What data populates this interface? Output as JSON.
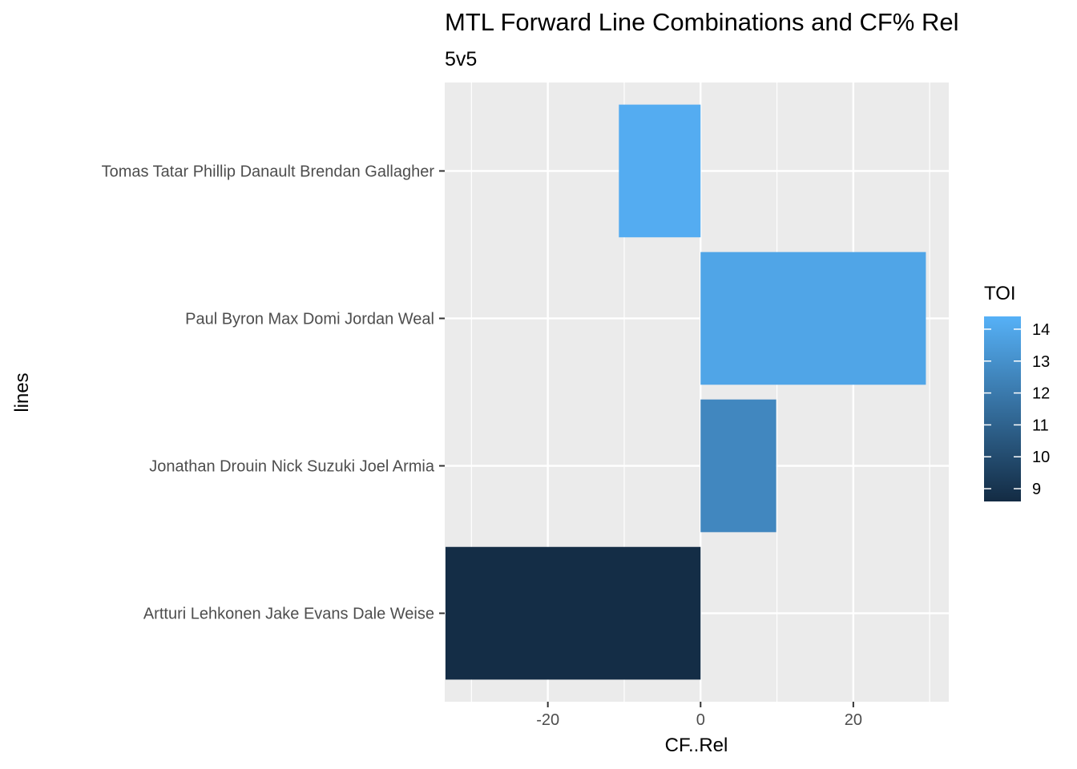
{
  "chart_data": {
    "type": "bar",
    "orientation": "horizontal",
    "title": "MTL Forward Line Combinations and CF% Rel",
    "subtitle": "5v5",
    "xlabel": "CF..Rel",
    "ylabel": "lines",
    "xlim": [
      -33.5,
      32.5
    ],
    "x_ticks": [
      -20,
      0,
      20
    ],
    "grid": true,
    "legend_position": "right",
    "categories": [
      "Tomas Tatar Phillip Danault Brendan Gallagher",
      "Paul Byron Max Domi Jordan Weal",
      "Jonathan Drouin Nick Suzuki Joel Armia",
      "Artturi Lehkonen Jake Evans Dale Weise"
    ],
    "values": [
      -10.7,
      29.5,
      9.9,
      -33.4
    ],
    "fill": [
      14.2,
      13.9,
      12.6,
      8.7
    ],
    "color_legend": {
      "title": "TOI",
      "breaks": [
        9,
        10,
        11,
        12,
        13,
        14
      ],
      "range": [
        8.6,
        14.4
      ],
      "low_color": "#132B43",
      "high_color": "#56B1F7"
    }
  }
}
